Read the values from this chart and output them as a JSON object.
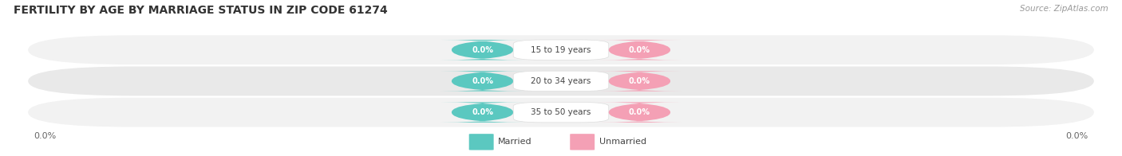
{
  "title": "FERTILITY BY AGE BY MARRIAGE STATUS IN ZIP CODE 61274",
  "source": "Source: ZipAtlas.com",
  "categories": [
    "15 to 19 years",
    "20 to 34 years",
    "35 to 50 years"
  ],
  "married_values": [
    "0.0%",
    "0.0%",
    "0.0%"
  ],
  "unmarried_values": [
    "0.0%",
    "0.0%",
    "0.0%"
  ],
  "married_color": "#5BC8C0",
  "unmarried_color": "#F4A0B5",
  "row_bg_color_odd": "#F2F2F2",
  "row_bg_color_even": "#E9E9E9",
  "x_left_label": "0.0%",
  "x_right_label": "0.0%",
  "title_fontsize": 10,
  "source_fontsize": 7.5,
  "background_color": "#FFFFFF",
  "fig_width": 14.06,
  "fig_height": 1.96
}
